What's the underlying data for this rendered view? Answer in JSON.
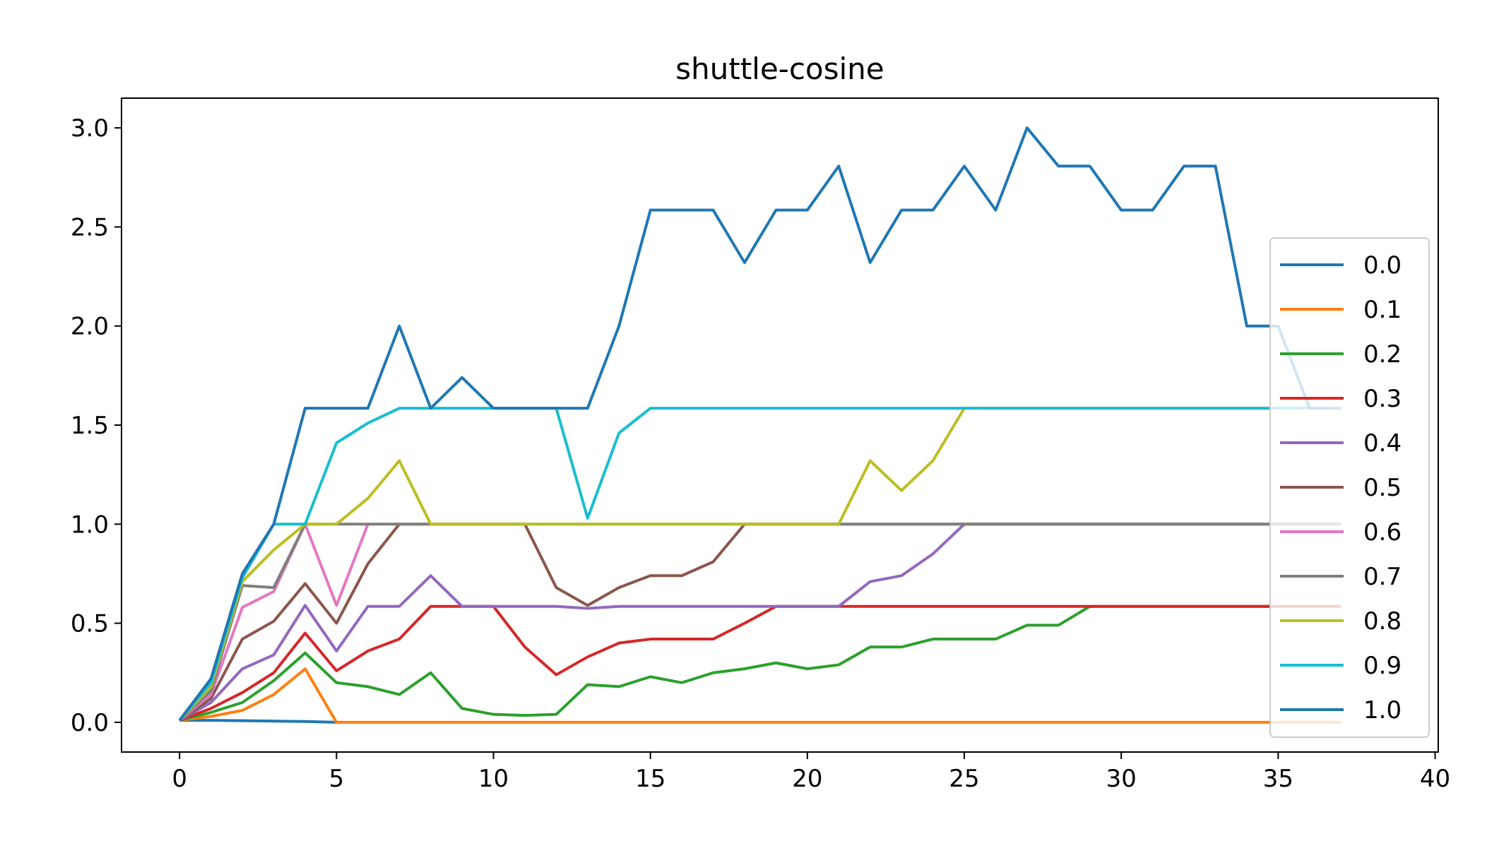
{
  "chart_data": {
    "type": "line",
    "title": "shuttle-cosine",
    "xlabel": "",
    "ylabel": "",
    "xlim": [
      -1.85,
      40.1
    ],
    "ylim": [
      -0.15,
      3.15
    ],
    "xticks": [
      0,
      5,
      10,
      15,
      20,
      25,
      30,
      35,
      40
    ],
    "xtick_labels": [
      "0",
      "5",
      "10",
      "15",
      "20",
      "25",
      "30",
      "35",
      "40"
    ],
    "yticks": [
      0.0,
      0.5,
      1.0,
      1.5,
      2.0,
      2.5,
      3.0
    ],
    "ytick_labels": [
      "0.0",
      "0.5",
      "1.0",
      "1.5",
      "2.0",
      "2.5",
      "3.0"
    ],
    "grid": false,
    "legend_position": "right",
    "series": [
      {
        "name": "0.0",
        "color": "#1f77b4",
        "x": [
          0,
          1,
          2,
          3,
          4,
          5
        ],
        "y": [
          0.01,
          0.01,
          0.008,
          0.006,
          0.004,
          0.0
        ]
      },
      {
        "name": "0.1",
        "color": "#ff7f0e",
        "x": [
          0,
          1,
          2,
          3,
          4,
          5,
          6,
          7,
          8,
          9,
          10,
          11,
          12,
          13,
          14,
          15,
          16,
          17,
          18,
          19,
          20,
          21,
          22,
          23,
          24,
          25,
          26,
          27,
          28,
          29,
          30,
          31,
          32,
          33,
          34,
          35,
          36,
          37
        ],
        "y": [
          0.01,
          0.03,
          0.06,
          0.14,
          0.27,
          0,
          0,
          0,
          0,
          0,
          0,
          0,
          0,
          0,
          0,
          0,
          0,
          0,
          0,
          0,
          0,
          0,
          0,
          0,
          0,
          0,
          0,
          0,
          0,
          0,
          0,
          0,
          0,
          0,
          0,
          0,
          0,
          0
        ]
      },
      {
        "name": "0.2",
        "color": "#2ca02c",
        "x": [
          0,
          1,
          2,
          3,
          4,
          5,
          6,
          7,
          8,
          9,
          10,
          11,
          12,
          13,
          14,
          15,
          16,
          17,
          18,
          19,
          20,
          21,
          22,
          23,
          24,
          25,
          26,
          27,
          28,
          29,
          30,
          31,
          32,
          33,
          34,
          35,
          36,
          37
        ],
        "y": [
          0.01,
          0.05,
          0.1,
          0.21,
          0.35,
          0.2,
          0.18,
          0.14,
          0.25,
          0.07,
          0.04,
          0.035,
          0.04,
          0.19,
          0.18,
          0.23,
          0.2,
          0.25,
          0.27,
          0.3,
          0.27,
          0.29,
          0.38,
          0.38,
          0.42,
          0.42,
          0.42,
          0.49,
          0.49,
          0.585,
          0.585,
          0.585,
          0.585,
          0.585,
          0.585,
          0.585,
          0.585,
          0.585
        ]
      },
      {
        "name": "0.3",
        "color": "#d62728",
        "x": [
          0,
          1,
          2,
          3,
          4,
          5,
          6,
          7,
          8,
          9,
          10,
          11,
          12,
          13,
          14,
          15,
          16,
          17,
          18,
          19,
          20,
          21,
          22,
          23,
          24,
          25,
          26,
          27,
          28,
          29,
          30,
          31,
          32,
          33,
          34,
          35,
          36,
          37
        ],
        "y": [
          0.01,
          0.07,
          0.15,
          0.25,
          0.45,
          0.26,
          0.36,
          0.42,
          0.585,
          0.585,
          0.585,
          0.38,
          0.24,
          0.33,
          0.4,
          0.42,
          0.42,
          0.42,
          0.5,
          0.585,
          0.585,
          0.585,
          0.585,
          0.585,
          0.585,
          0.585,
          0.585,
          0.585,
          0.585,
          0.585,
          0.585,
          0.585,
          0.585,
          0.585,
          0.585,
          0.585,
          0.585,
          0.585
        ]
      },
      {
        "name": "0.4",
        "color": "#9467bd",
        "x": [
          0,
          1,
          2,
          3,
          4,
          5,
          6,
          7,
          8,
          9,
          10,
          11,
          12,
          13,
          14,
          15,
          16,
          17,
          18,
          19,
          20,
          21,
          22,
          23,
          24,
          25,
          26,
          27,
          28,
          29,
          30,
          31,
          32,
          33,
          34,
          35,
          36,
          37
        ],
        "y": [
          0.01,
          0.1,
          0.27,
          0.34,
          0.59,
          0.36,
          0.585,
          0.585,
          0.74,
          0.585,
          0.585,
          0.585,
          0.585,
          0.575,
          0.585,
          0.585,
          0.585,
          0.585,
          0.585,
          0.585,
          0.585,
          0.585,
          0.71,
          0.74,
          0.85,
          1.0,
          1.0,
          1.0,
          1.0,
          1.0,
          1.0,
          1.0,
          1.0,
          1.0,
          1.0,
          1.0,
          1.0,
          1.0
        ]
      },
      {
        "name": "0.5",
        "color": "#8c564b",
        "x": [
          0,
          1,
          2,
          3,
          4,
          5,
          6,
          7,
          8,
          9,
          10,
          11,
          12,
          13,
          14,
          15,
          16,
          17,
          18,
          19,
          20,
          21,
          22,
          23,
          24,
          25,
          26,
          27,
          28,
          29,
          30,
          31,
          32,
          33,
          34,
          35,
          36,
          37
        ],
        "y": [
          0.01,
          0.12,
          0.42,
          0.51,
          0.7,
          0.5,
          0.8,
          1.0,
          1.0,
          1.0,
          1.0,
          1.0,
          0.68,
          0.59,
          0.68,
          0.74,
          0.74,
          0.81,
          1.0,
          1.0,
          1.0,
          1.0,
          1.0,
          1.0,
          1.0,
          1.0,
          1.0,
          1.0,
          1.0,
          1.0,
          1.0,
          1.0,
          1.0,
          1.0,
          1.0,
          1.0,
          1.0,
          1.0
        ]
      },
      {
        "name": "0.6",
        "color": "#e377c2",
        "x": [
          0,
          1,
          2,
          3,
          4,
          5,
          6
        ],
        "y": [
          0.01,
          0.14,
          0.58,
          0.66,
          1.0,
          0.59,
          1.0
        ]
      },
      {
        "name": "0.7",
        "color": "#7f7f7f",
        "x": [
          0,
          1,
          2,
          3,
          4,
          5,
          6,
          7,
          8,
          9,
          10,
          11,
          12,
          13,
          14,
          15,
          16,
          17,
          18,
          19,
          20,
          21,
          22,
          23,
          24,
          25,
          26,
          27,
          28,
          29,
          30,
          31,
          32,
          33,
          34,
          35,
          36,
          37
        ],
        "y": [
          0.01,
          0.16,
          0.69,
          0.68,
          1.0,
          1.0,
          1.0,
          1.0,
          1.0,
          1.0,
          1.0,
          1.0,
          1.0,
          1.0,
          1.0,
          1.0,
          1.0,
          1.0,
          1.0,
          1.0,
          1.0,
          1.0,
          1.0,
          1.0,
          1.0,
          1.0,
          1.0,
          1.0,
          1.0,
          1.0,
          1.0,
          1.0,
          1.0,
          1.0,
          1.0,
          1.0,
          1.0,
          1.0
        ]
      },
      {
        "name": "0.8",
        "color": "#bcbd22",
        "x": [
          0,
          1,
          2,
          3,
          4,
          5,
          6,
          7,
          8,
          9,
          10,
          11,
          12,
          13,
          14,
          15,
          16,
          17,
          18,
          19,
          20,
          21,
          22,
          23,
          24,
          25,
          26,
          27,
          28,
          29,
          30,
          31,
          32,
          33,
          34,
          35,
          36,
          37
        ],
        "y": [
          0.01,
          0.18,
          0.71,
          0.87,
          1.0,
          1.0,
          1.13,
          1.32,
          1.0,
          1.0,
          1.0,
          1.0,
          1.0,
          1.0,
          1.0,
          1.0,
          1.0,
          1.0,
          1.0,
          1.0,
          1.0,
          1.0,
          1.32,
          1.17,
          1.32,
          1.585,
          1.585,
          1.585,
          1.585,
          1.585,
          1.585,
          1.585,
          1.585,
          1.585,
          1.585,
          1.585,
          1.585,
          1.585
        ]
      },
      {
        "name": "0.9",
        "color": "#17becf",
        "x": [
          0,
          1,
          2,
          3,
          4,
          5,
          6,
          7,
          8,
          9,
          10,
          11,
          12,
          13,
          14,
          15,
          16,
          17,
          18,
          19,
          20,
          21,
          22,
          23,
          24,
          25,
          26,
          27,
          28,
          29,
          30,
          31,
          32,
          33,
          34,
          35,
          36,
          37
        ],
        "y": [
          0.01,
          0.2,
          0.73,
          1.0,
          1.0,
          1.41,
          1.51,
          1.585,
          1.585,
          1.585,
          1.585,
          1.585,
          1.585,
          1.03,
          1.46,
          1.585,
          1.585,
          1.585,
          1.585,
          1.585,
          1.585,
          1.585,
          1.585,
          1.585,
          1.585,
          1.585,
          1.585,
          1.585,
          1.585,
          1.585,
          1.585,
          1.585,
          1.585,
          1.585,
          1.585,
          1.585,
          1.585,
          1.585
        ]
      },
      {
        "name": "1.0",
        "color": "#1f77b4",
        "x": [
          0,
          1,
          2,
          3,
          4,
          5,
          6,
          7,
          8,
          9,
          10,
          11,
          12,
          13,
          14,
          15,
          16,
          17,
          18,
          19,
          20,
          21,
          22,
          23,
          24,
          25,
          26,
          27,
          28,
          29,
          30,
          31,
          32,
          33,
          34,
          35,
          36,
          37
        ],
        "y": [
          0.01,
          0.22,
          0.75,
          1.0,
          1.585,
          1.585,
          1.585,
          2.0,
          1.585,
          1.74,
          1.585,
          1.585,
          1.585,
          1.585,
          2.0,
          2.585,
          2.585,
          2.585,
          2.32,
          2.585,
          2.585,
          2.807,
          2.32,
          2.585,
          2.585,
          2.807,
          2.585,
          3.0,
          2.807,
          2.807,
          2.585,
          2.585,
          2.807,
          2.807,
          2.0,
          2.0,
          1.585,
          1.585
        ]
      }
    ]
  }
}
